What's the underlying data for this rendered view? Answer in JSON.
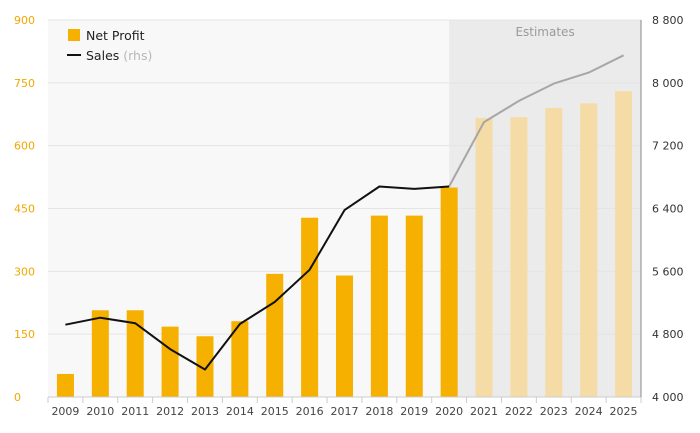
{
  "chart_data": {
    "type": "bar+line",
    "categories": [
      "2009",
      "2010",
      "2011",
      "2012",
      "2013",
      "2014",
      "2015",
      "2016",
      "2017",
      "2018",
      "2019",
      "2020",
      "2021",
      "2022",
      "2023",
      "2024",
      "2025"
    ],
    "estimates_start_index": 12,
    "estimates_label": "Estimates",
    "series": [
      {
        "name": "Net Profit",
        "type": "bar",
        "axis": "left",
        "color": "#f5b000",
        "estimate_color": "#f5dca6",
        "values": [
          55,
          207,
          207,
          168,
          145,
          181,
          294,
          428,
          290,
          433,
          433,
          500,
          666,
          668,
          690,
          701,
          730
        ]
      },
      {
        "name": "Sales",
        "name_suffix": "(rhs)",
        "type": "line",
        "axis": "right",
        "color": "#111111",
        "estimate_color": "#a6a6a6",
        "values": [
          4920,
          5010,
          4940,
          4610,
          4350,
          4930,
          5210,
          5620,
          6380,
          6680,
          6650,
          6680,
          7500,
          7770,
          7990,
          8130,
          8350
        ]
      }
    ],
    "y_left": {
      "min": 0,
      "max": 900,
      "ticks": [
        "0",
        "150",
        "300",
        "450",
        "600",
        "750",
        "900"
      ]
    },
    "y_right": {
      "min": 4000,
      "max": 8800,
      "ticks": [
        "4 000",
        "4 800",
        "5 600",
        "6 400",
        "7 200",
        "8 000",
        "8 800"
      ]
    },
    "grid": true,
    "legend_position": "top-left"
  }
}
